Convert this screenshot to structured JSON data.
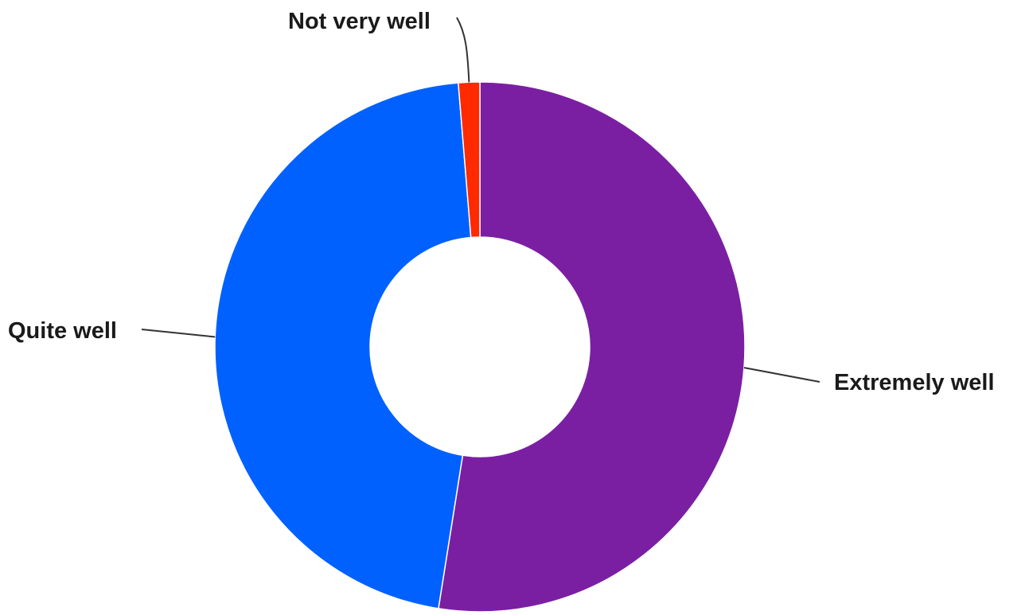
{
  "chart_data": {
    "type": "pie",
    "donut": true,
    "title": "",
    "slices": [
      {
        "label": "Extremely well",
        "value": 52.5,
        "color": "#7B1FA2"
      },
      {
        "label": "Quite well",
        "value": 46.2,
        "color": "#0061FF"
      },
      {
        "label": "Not very well",
        "value": 1.3,
        "color": "#FF2A00"
      }
    ],
    "legend": "none",
    "labels_position": "outside-with-leader-lines"
  }
}
